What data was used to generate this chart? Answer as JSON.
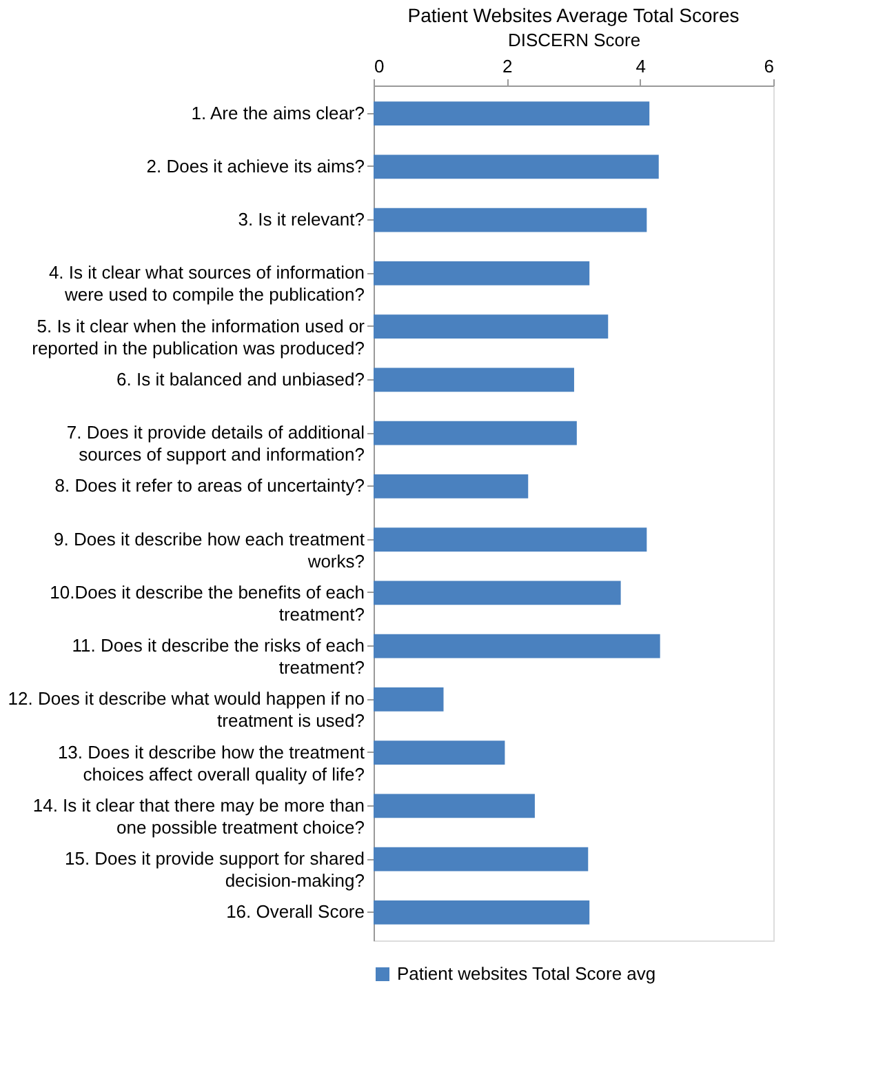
{
  "chart_data": {
    "type": "bar",
    "orientation": "horizontal",
    "title": "Patient Websites Average Total Scores",
    "xlabel": "DISCERN Score",
    "categories": [
      "1. Are the aims clear?",
      "2. Does it achieve its aims?",
      "3. Is it relevant?",
      "4. Is it clear what sources of information were used to compile the publication?",
      "5. Is it clear when the information used or reported in the publication was produced?",
      "6. Is it balanced and unbiased?",
      "7. Does it provide details of additional sources of support and information?",
      "8. Does it refer to areas of uncertainty?",
      "9. Does it describe how each treatment works?",
      "10.Does it describe the benefits of each treatment?",
      "11. Does it describe the risks of each treatment?",
      "12. Does it describe what would happen if no treatment is used?",
      "13. Does it describe how the treatment choices affect overall quality of life?",
      "14. Is it clear that there may be more than one possible treatment choice?",
      "15. Does it provide support for shared decision-making?",
      "16. Overall Score"
    ],
    "series": [
      {
        "name": "Patient websites Total Score avg",
        "color": "#4a81bf",
        "values": [
          4.14,
          4.28,
          4.1,
          3.24,
          3.52,
          3.01,
          3.05,
          2.32,
          4.1,
          3.71,
          4.3,
          1.05,
          1.97,
          2.42,
          3.22,
          3.24
        ]
      }
    ],
    "xlim": [
      0,
      6
    ],
    "xticks": [
      0,
      2,
      4,
      6
    ],
    "grid": false,
    "legend": "bottom"
  }
}
